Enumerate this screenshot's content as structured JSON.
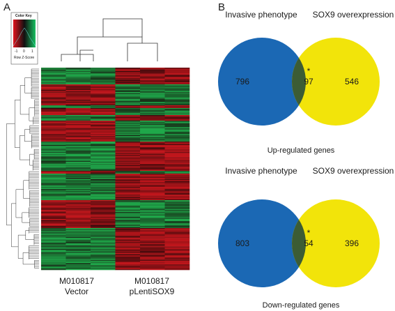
{
  "panel_a": {
    "label": "A",
    "color_key": {
      "title": "Color Key",
      "ticks": [
        "-1",
        "0",
        "1"
      ],
      "axis_label": "Row Z-Score",
      "colors": [
        "#e0141e",
        "#111111",
        "#16c060"
      ]
    },
    "columns": [
      {
        "line1": "M010817",
        "line2": "Vector"
      },
      {
        "line1": "M010817",
        "line2": "pLentiSOX9"
      }
    ],
    "heatmap_colors": {
      "low": "#c0161c",
      "mid": "#140606",
      "high": "#1fa84a"
    }
  },
  "panel_b": {
    "label": "B",
    "venns": [
      {
        "left_title": "Invasive phenotype",
        "right_title": "SOX9 overexpression",
        "left_only": "796",
        "overlap": "97",
        "right_only": "546",
        "marker": "*",
        "caption": "Up-regulated genes"
      },
      {
        "left_title": "Invasive phenotype",
        "right_title": "SOX9 overexpression",
        "left_only": "803",
        "overlap": "54",
        "right_only": "396",
        "marker": "*",
        "caption": "Down-regulated genes"
      }
    ],
    "colors": {
      "left": "#1b68b4",
      "right": "#f2e40a",
      "overlap": "#3c5c34"
    }
  }
}
